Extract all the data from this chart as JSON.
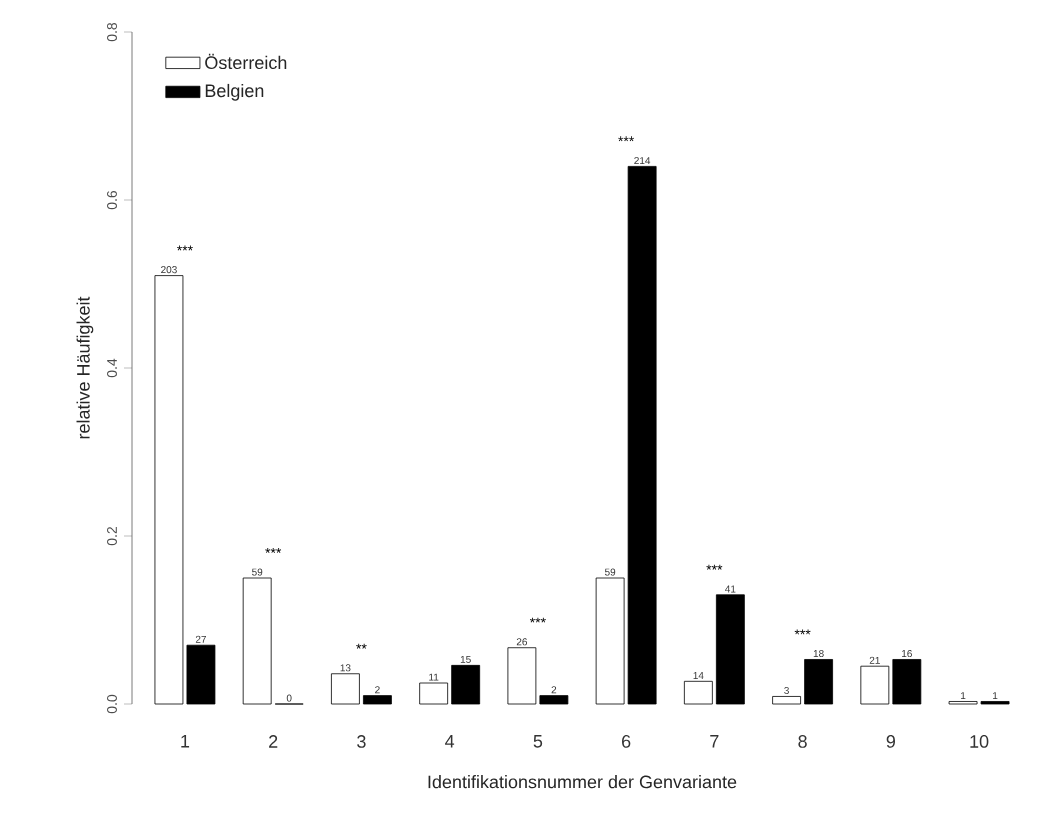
{
  "chart_data": {
    "type": "bar",
    "xlabel": "Identifikationsnummer der Genvariante",
    "ylabel": "relative Häufigkeit",
    "categories": [
      "1",
      "2",
      "3",
      "4",
      "5",
      "6",
      "7",
      "8",
      "9",
      "10"
    ],
    "series": [
      {
        "name": "Österreich",
        "color": "#ffffff",
        "values": [
          0.51,
          0.15,
          0.036,
          0.025,
          0.067,
          0.15,
          0.027,
          0.009,
          0.045,
          0.003
        ]
      },
      {
        "name": "Belgien",
        "color": "#000000",
        "values": [
          0.07,
          0.0,
          0.01,
          0.046,
          0.01,
          0.64,
          0.13,
          0.053,
          0.053,
          0.003
        ]
      }
    ],
    "ylim": [
      0,
      0.8
    ],
    "yticks": [
      {
        "value": 0,
        "label": "0.0"
      },
      {
        "value": 0.2,
        "label": "0.2"
      },
      {
        "value": 0.4,
        "label": "0.4"
      },
      {
        "value": 0.6,
        "label": "0.6"
      },
      {
        "value": 0.8,
        "label": "0.8"
      }
    ],
    "annotations": [
      {
        "text": "203",
        "x": "1",
        "y": 0.51
      },
      {
        "text": "27",
        "x": "1",
        "y": 0.07
      },
      {
        "text": "59",
        "x": "2",
        "y": 0.15
      },
      {
        "text": "0",
        "x": "2",
        "y": 0.0
      },
      {
        "text": "13",
        "x": "3",
        "y": 0.036
      },
      {
        "text": "2",
        "x": "3",
        "y": 0.01
      },
      {
        "text": "11",
        "x": "4",
        "y": 0.025
      },
      {
        "text": "15",
        "x": "4",
        "y": 0.046
      },
      {
        "text": "26",
        "x": "5",
        "y": 0.067
      },
      {
        "text": "2",
        "x": "5",
        "y": 0.01
      },
      {
        "text": "59",
        "x": "6",
        "y": 0.15
      },
      {
        "text": "214",
        "x": "6",
        "y": 0.64
      },
      {
        "text": "14",
        "x": "7",
        "y": 0.027
      },
      {
        "text": "41",
        "x": "7",
        "y": 0.13
      },
      {
        "text": "3",
        "x": "8",
        "y": 0.009
      },
      {
        "text": "18",
        "x": "8",
        "y": 0.053
      },
      {
        "text": "21",
        "x": "9",
        "y": 0.045
      },
      {
        "text": "16",
        "x": "9",
        "y": 0.053
      },
      {
        "text": "1",
        "x": "10",
        "y": 0.003
      },
      {
        "text": "1",
        "x": "10",
        "y": 0.003
      },
      {
        "text": "***",
        "x": "1",
        "y": 0.51
      },
      {
        "text": "***",
        "x": "2",
        "y": 0.15
      },
      {
        "text": "**",
        "x": "3",
        "y": 0.036
      },
      {
        "text": "***",
        "x": "5",
        "y": 0.067
      },
      {
        "text": "***",
        "x": "6",
        "y": 0.64
      },
      {
        "text": "***",
        "x": "7",
        "y": 0.13
      },
      {
        "text": "***",
        "x": "8",
        "y": 0.053
      }
    ],
    "legend": "top left",
    "grid": false
  }
}
